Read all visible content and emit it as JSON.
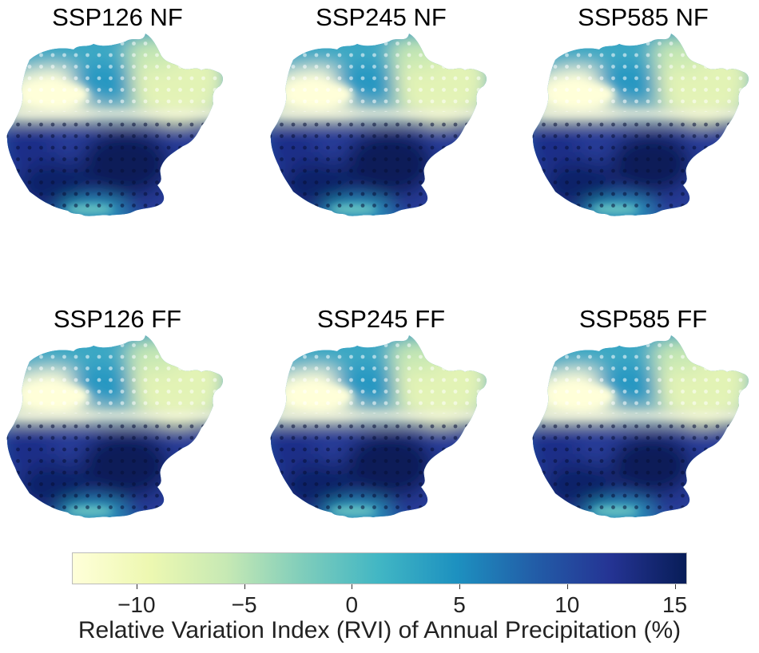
{
  "panels": [
    {
      "title": "SSP126 NF",
      "scenario": "SSP126",
      "period": "NF"
    },
    {
      "title": "SSP245 NF",
      "scenario": "SSP245",
      "period": "NF"
    },
    {
      "title": "SSP585 NF",
      "scenario": "SSP585",
      "period": "NF"
    },
    {
      "title": "SSP126 FF",
      "scenario": "SSP126",
      "period": "FF"
    },
    {
      "title": "SSP245 FF",
      "scenario": "SSP245",
      "period": "FF"
    },
    {
      "title": "SSP585 FF",
      "scenario": "SSP585",
      "period": "FF"
    }
  ],
  "colorbar": {
    "label": "Relative Variation Index (RVI) of Annual Precipitation (%)",
    "min": -13,
    "max": 15.5,
    "ticks": [
      {
        "value": -10,
        "label": "−10"
      },
      {
        "value": -5,
        "label": "−5"
      },
      {
        "value": 0,
        "label": "0"
      },
      {
        "value": 5,
        "label": "5"
      },
      {
        "value": 10,
        "label": "10"
      },
      {
        "value": 15,
        "label": "15"
      }
    ],
    "colormap": "YlGnBu",
    "colors": [
      "#ffffd9",
      "#edf8b1",
      "#c7e9b4",
      "#7fcdbb",
      "#41b6c4",
      "#1d91c0",
      "#225ea8",
      "#253494",
      "#081d58"
    ]
  }
}
